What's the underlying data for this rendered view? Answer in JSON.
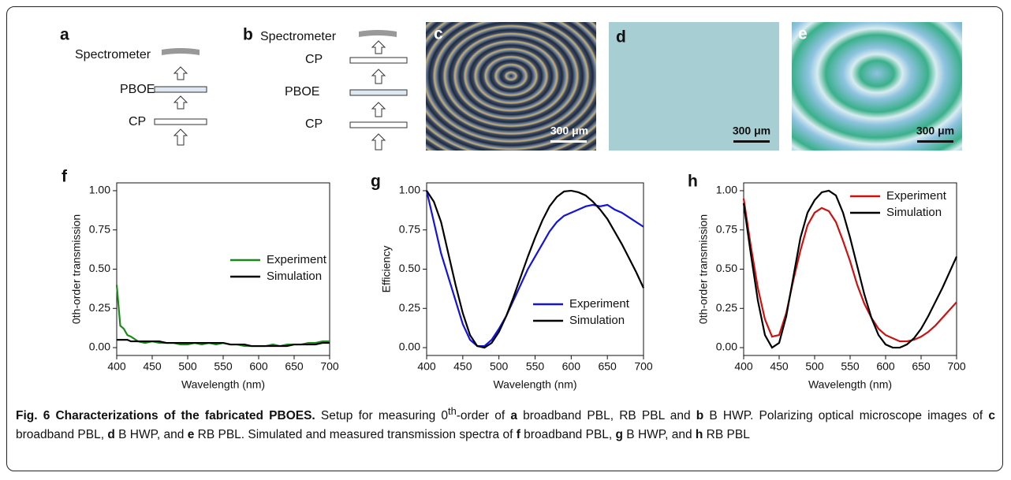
{
  "panels": {
    "a": {
      "label": "a",
      "texts": [
        "Spectrometer",
        "PBOE",
        "CP"
      ]
    },
    "b": {
      "label": "b",
      "texts": [
        "Spectrometer",
        "CP",
        "PBOE",
        "CP"
      ]
    },
    "c": {
      "label": "c",
      "scale": "300 μm"
    },
    "d": {
      "label": "d",
      "scale": "300 μm"
    },
    "e": {
      "label": "e",
      "scale": "300 μm"
    }
  },
  "chart_data": [
    {
      "type": "line",
      "panel_label": "f",
      "xlabel": "Wavelength (nm)",
      "ylabel": "0th-order transmission",
      "x": [
        400,
        405,
        410,
        415,
        420,
        430,
        440,
        450,
        460,
        470,
        480,
        490,
        500,
        510,
        520,
        530,
        540,
        550,
        560,
        570,
        580,
        590,
        600,
        610,
        620,
        630,
        640,
        650,
        660,
        670,
        680,
        690,
        700
      ],
      "series": [
        {
          "name": "Experiment",
          "color": "#1a8a1a",
          "values": [
            0.4,
            0.14,
            0.12,
            0.08,
            0.07,
            0.04,
            0.03,
            0.04,
            0.03,
            0.03,
            0.03,
            0.02,
            0.02,
            0.03,
            0.02,
            0.03,
            0.02,
            0.03,
            0.02,
            0.02,
            0.01,
            0.01,
            0.01,
            0.01,
            0.02,
            0.01,
            0.02,
            0.02,
            0.02,
            0.03,
            0.03,
            0.04,
            0.04
          ]
        },
        {
          "name": "Simulation",
          "color": "#000000",
          "values": [
            0.05,
            0.05,
            0.05,
            0.05,
            0.04,
            0.04,
            0.04,
            0.04,
            0.04,
            0.03,
            0.03,
            0.03,
            0.03,
            0.03,
            0.03,
            0.03,
            0.03,
            0.03,
            0.02,
            0.02,
            0.02,
            0.01,
            0.01,
            0.01,
            0.01,
            0.01,
            0.01,
            0.02,
            0.02,
            0.02,
            0.02,
            0.03,
            0.03
          ]
        }
      ],
      "xlim": [
        400,
        700
      ],
      "xticks": [
        400,
        450,
        500,
        550,
        600,
        650,
        700
      ],
      "ylim": [
        -0.05,
        1.05
      ],
      "yticks": [
        {
          "value": 0,
          "label": "0.00"
        },
        {
          "value": 0.25,
          "label": "0.25"
        },
        {
          "value": 0.5,
          "label": "0.50"
        },
        {
          "value": 0.75,
          "label": "0.75"
        },
        {
          "value": 1,
          "label": "1.00"
        }
      ]
    },
    {
      "type": "line",
      "panel_label": "g",
      "xlabel": "Wavelength (nm)",
      "ylabel": "Efficiency",
      "x": [
        400,
        410,
        420,
        430,
        440,
        450,
        460,
        470,
        480,
        490,
        500,
        510,
        520,
        530,
        540,
        550,
        560,
        570,
        580,
        590,
        600,
        610,
        620,
        630,
        640,
        650,
        660,
        670,
        680,
        690,
        700
      ],
      "series": [
        {
          "name": "Experiment",
          "color": "#1414d8",
          "values": [
            1.0,
            0.8,
            0.6,
            0.45,
            0.3,
            0.15,
            0.05,
            0.01,
            0.01,
            0.05,
            0.12,
            0.2,
            0.3,
            0.4,
            0.5,
            0.58,
            0.66,
            0.74,
            0.8,
            0.84,
            0.86,
            0.88,
            0.9,
            0.91,
            0.9,
            0.91,
            0.88,
            0.86,
            0.83,
            0.8,
            0.77
          ]
        },
        {
          "name": "Simulation",
          "color": "#000000",
          "values": [
            1.0,
            0.93,
            0.8,
            0.6,
            0.4,
            0.22,
            0.08,
            0.01,
            0.0,
            0.03,
            0.1,
            0.2,
            0.32,
            0.45,
            0.58,
            0.7,
            0.81,
            0.9,
            0.96,
            0.995,
            1.0,
            0.99,
            0.97,
            0.93,
            0.88,
            0.82,
            0.74,
            0.66,
            0.57,
            0.48,
            0.38
          ]
        }
      ],
      "xlim": [
        400,
        700
      ],
      "xticks": [
        400,
        450,
        500,
        550,
        600,
        650,
        700
      ],
      "ylim": [
        -0.05,
        1.05
      ],
      "yticks": [
        {
          "value": 0,
          "label": "0.00"
        },
        {
          "value": 0.25,
          "label": "0.25"
        },
        {
          "value": 0.5,
          "label": "0.50"
        },
        {
          "value": 0.75,
          "label": "0.75"
        },
        {
          "value": 1,
          "label": "1.00"
        }
      ]
    },
    {
      "type": "line",
      "panel_label": "h",
      "xlabel": "Wavelength (nm)",
      "ylabel": "0th-order transmission",
      "x": [
        400,
        410,
        420,
        430,
        440,
        450,
        460,
        470,
        480,
        490,
        500,
        510,
        520,
        530,
        540,
        550,
        560,
        570,
        580,
        590,
        600,
        610,
        620,
        630,
        640,
        650,
        660,
        670,
        680,
        690,
        700
      ],
      "series": [
        {
          "name": "Experiment",
          "color": "#cc1111",
          "values": [
            0.95,
            0.65,
            0.38,
            0.18,
            0.07,
            0.08,
            0.22,
            0.43,
            0.62,
            0.78,
            0.86,
            0.89,
            0.87,
            0.8,
            0.68,
            0.55,
            0.4,
            0.28,
            0.19,
            0.12,
            0.08,
            0.06,
            0.04,
            0.04,
            0.05,
            0.07,
            0.1,
            0.14,
            0.19,
            0.24,
            0.29
          ]
        },
        {
          "name": "Simulation",
          "color": "#000000",
          "values": [
            0.92,
            0.6,
            0.3,
            0.08,
            0.0,
            0.03,
            0.2,
            0.45,
            0.7,
            0.86,
            0.94,
            0.99,
            1.0,
            0.97,
            0.86,
            0.7,
            0.52,
            0.34,
            0.19,
            0.08,
            0.02,
            0.0,
            0.0,
            0.02,
            0.06,
            0.12,
            0.2,
            0.29,
            0.38,
            0.48,
            0.58
          ]
        }
      ],
      "xlim": [
        400,
        700
      ],
      "xticks": [
        400,
        450,
        500,
        550,
        600,
        650,
        700
      ],
      "ylim": [
        -0.05,
        1.05
      ],
      "yticks": [
        {
          "value": 0,
          "label": "0.00"
        },
        {
          "value": 0.25,
          "label": "0.25"
        },
        {
          "value": 0.5,
          "label": "0.50"
        },
        {
          "value": 0.75,
          "label": "0.75"
        },
        {
          "value": 1,
          "label": "1.00"
        }
      ]
    }
  ],
  "caption": {
    "parts": [
      "Fig. 6 Characterizations of the fabricated PBOES.",
      " Setup for measuring 0",
      "th",
      "-order of ",
      "a",
      " broadband PBL, RB PBL and ",
      "b",
      " B HWP. Polarizing optical microscope images of ",
      "c",
      " broadband PBL, ",
      "d",
      " B HWP, and ",
      "e",
      " RB PBL. Simulated and measured transmission spectra of ",
      "f",
      " broadband PBL, ",
      "g",
      " B HWP, and ",
      "h",
      " RB PBL"
    ]
  }
}
